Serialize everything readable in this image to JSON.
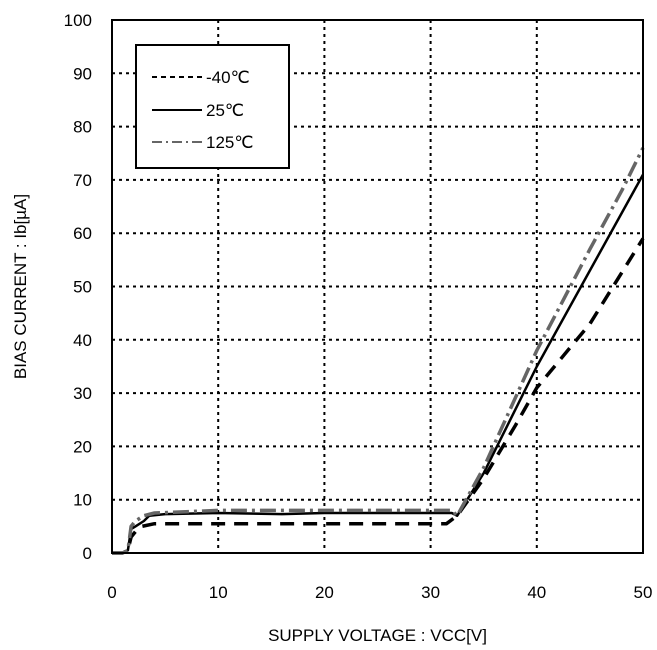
{
  "chart_data": {
    "type": "line",
    "title": "",
    "xlabel": "SUPPLY VOLTAGE : VCC[V]",
    "ylabel": "BIAS CURRENT : Ib[µA]",
    "xlim": [
      0,
      50
    ],
    "ylim": [
      0,
      100
    ],
    "xticks": [
      "0",
      "10",
      "20",
      "30",
      "40",
      "50"
    ],
    "yticks": [
      "0",
      "10",
      "20",
      "30",
      "40",
      "50",
      "60",
      "70",
      "80",
      "90",
      "100"
    ],
    "grid": true,
    "legend_position": "top-left",
    "series": [
      {
        "name": "-40℃",
        "style": "dashed",
        "color": "#000000",
        "points": [
          [
            0,
            0
          ],
          [
            1,
            0
          ],
          [
            1.5,
            0.5
          ],
          [
            1.8,
            3
          ],
          [
            2.2,
            4
          ],
          [
            2.8,
            5
          ],
          [
            4,
            5.5
          ],
          [
            10,
            5.5
          ],
          [
            20,
            5.5
          ],
          [
            30,
            5.5
          ],
          [
            31.5,
            5.5
          ],
          [
            32.5,
            7
          ],
          [
            35,
            14
          ],
          [
            38,
            24
          ],
          [
            40,
            31
          ],
          [
            45,
            43
          ],
          [
            50,
            59
          ]
        ]
      },
      {
        "name": "25℃",
        "style": "solid",
        "color": "#000000",
        "points": [
          [
            0,
            0
          ],
          [
            1,
            0
          ],
          [
            1.5,
            0.5
          ],
          [
            1.8,
            4.5
          ],
          [
            2.2,
            5
          ],
          [
            3,
            6
          ],
          [
            3.5,
            7
          ],
          [
            5,
            7.3
          ],
          [
            10,
            7.5
          ],
          [
            16,
            7.3
          ],
          [
            20,
            7.5
          ],
          [
            25,
            7.5
          ],
          [
            30,
            7.5
          ],
          [
            32,
            7.5
          ],
          [
            32.5,
            7
          ],
          [
            35,
            15
          ],
          [
            40,
            35
          ],
          [
            45,
            53
          ],
          [
            50,
            71
          ]
        ]
      },
      {
        "name": "125℃",
        "style": "dashdot",
        "color": "#666666",
        "points": [
          [
            0,
            0
          ],
          [
            1,
            0
          ],
          [
            1.5,
            0.5
          ],
          [
            1.8,
            5
          ],
          [
            2.2,
            6
          ],
          [
            3,
            7
          ],
          [
            4,
            7.5
          ],
          [
            10,
            8
          ],
          [
            20,
            8
          ],
          [
            30,
            8
          ],
          [
            32,
            8
          ],
          [
            32.5,
            7
          ],
          [
            35,
            16
          ],
          [
            40,
            38
          ],
          [
            45,
            57
          ],
          [
            48,
            68
          ],
          [
            50,
            76
          ]
        ]
      }
    ]
  }
}
